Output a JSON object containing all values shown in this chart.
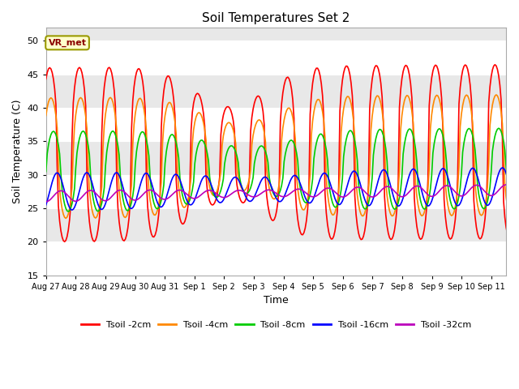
{
  "title": "Soil Temperatures Set 2",
  "xlabel": "Time",
  "ylabel": "Soil Temperature (C)",
  "ylim": [
    15,
    52
  ],
  "yticks": [
    15,
    20,
    25,
    30,
    35,
    40,
    45,
    50
  ],
  "plot_bg_color": "#e8e8e8",
  "grid_color": "white",
  "annotation_text": "VR_met",
  "annotation_box_color": "#ffffcc",
  "annotation_box_edge": "#999900",
  "series_colors": [
    "#ff0000",
    "#ff8800",
    "#00cc00",
    "#0000ff",
    "#bb00bb"
  ],
  "series_labels": [
    "Tsoil -2cm",
    "Tsoil -4cm",
    "Tsoil -8cm",
    "Tsoil -16cm",
    "Tsoil -32cm"
  ],
  "x_tick_labels": [
    "Aug 27",
    "Aug 28",
    "Aug 29",
    "Aug 30",
    "Aug 31",
    "Sep 1",
    "Sep 2",
    "Sep 3",
    "Sep 4",
    "Sep 5",
    "Sep 6",
    "Sep 7",
    "Sep 8",
    "Sep 9",
    "Sep 10",
    "Sep 11"
  ],
  "figsize": [
    6.4,
    4.8
  ],
  "dpi": 100
}
